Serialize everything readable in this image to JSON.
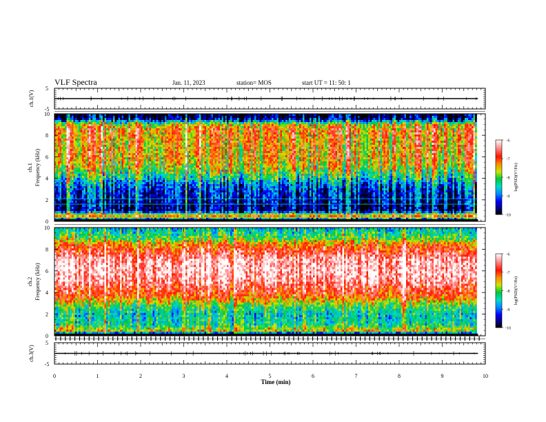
{
  "header": {
    "title": "VLF Spectra",
    "date": "Jan. 11, 2023",
    "station": "station= MOS",
    "start": "start  UT =   11: 50: 1"
  },
  "chart_data": [
    {
      "type": "line",
      "panel": "ch1-waveform",
      "ylabel": "ch.1(V)",
      "ylim": [
        -5,
        5
      ],
      "yticks": [
        "5",
        "-5"
      ],
      "x": [
        0,
        9.83
      ],
      "values": [
        0,
        0
      ]
    },
    {
      "type": "heatmap",
      "panel": "ch1-spectrogram",
      "ylabel": "ch.1\nFrequency (kHz)",
      "ylim": [
        0,
        10
      ],
      "yticks": [
        "0",
        "2",
        "4",
        "6",
        "8",
        "10"
      ],
      "xlim": [
        0,
        9.83
      ],
      "colorbar": {
        "label": "log(PSD)(V²/Hz)",
        "ticks": [
          "-6",
          "-7",
          "-8",
          "-9",
          "-10"
        ],
        "range": [
          -10,
          -6
        ]
      },
      "frequency_profile_kHz": [
        0.1,
        0.5,
        1,
        1.5,
        2,
        2.5,
        3,
        3.5,
        4,
        5,
        6,
        7,
        8,
        8.5,
        9,
        9.5,
        9.8
      ],
      "typical_log_psd": [
        -9.9,
        -7.2,
        -9.7,
        -9.6,
        -9.5,
        -9.3,
        -9.2,
        -8.9,
        -8.4,
        -7.7,
        -7.4,
        -7.4,
        -7.3,
        -7.2,
        -7.6,
        -9.5,
        -9.9
      ]
    },
    {
      "type": "heatmap",
      "panel": "ch2-spectrogram",
      "ylabel": "ch.2\nFrequency (kHz)",
      "ylim": [
        0,
        10
      ],
      "yticks": [
        "0",
        "2",
        "4",
        "6",
        "8",
        "10"
      ],
      "xlim": [
        0,
        9.83
      ],
      "colorbar": {
        "label": "log(PSD)(V²/Hz)",
        "ticks": [
          "-6",
          "-7",
          "-8",
          "-9",
          "-10"
        ],
        "range": [
          -10,
          -6
        ]
      },
      "frequency_profile_kHz": [
        0.1,
        0.5,
        1,
        1.5,
        2,
        2.5,
        3,
        3.5,
        4,
        5,
        6,
        7,
        8,
        8.5,
        9,
        9.5,
        9.8
      ],
      "typical_log_psd": [
        -9.9,
        -7.5,
        -8.3,
        -8.4,
        -8.5,
        -8.2,
        -7.8,
        -7.2,
        -6.9,
        -6.4,
        -6.2,
        -6.3,
        -6.9,
        -7.3,
        -8.0,
        -8.3,
        -8.5
      ]
    },
    {
      "type": "line",
      "panel": "ch3-waveform",
      "ylabel": "ch.3(V)",
      "ylim": [
        -5,
        5
      ],
      "yticks": [
        "5",
        "-5"
      ],
      "x": [
        0,
        9.83
      ],
      "values": [
        0,
        0
      ]
    }
  ],
  "xaxis": {
    "label": "Time (min)",
    "range": [
      0,
      10
    ],
    "ticks": [
      "0",
      "1",
      "2",
      "3",
      "4",
      "5",
      "6",
      "7",
      "8",
      "9",
      "10"
    ]
  }
}
